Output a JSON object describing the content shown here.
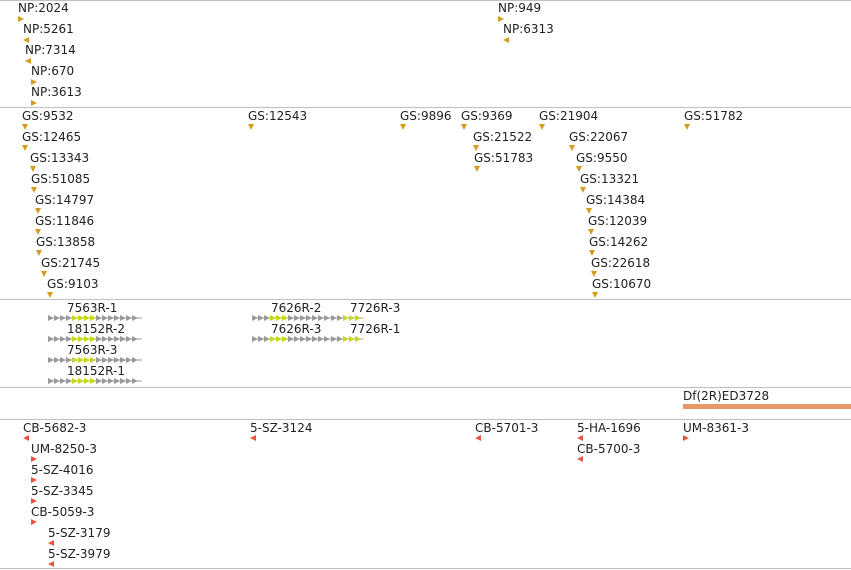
{
  "colors": {
    "divider": "#c0c0c0",
    "gene_span": "#d49b1e",
    "insertion": "#e8553c",
    "transcript_intron": "#9a9a9a",
    "transcript_exon": "#c8d61c",
    "deletion_bar": "#e8976a"
  },
  "tracks": {
    "np": {
      "features": [
        {
          "label": "NP:2024",
          "marker": "right"
        },
        {
          "label": "NP:5261",
          "marker": "left"
        },
        {
          "label": "NP:7314",
          "marker": "left"
        },
        {
          "label": "NP:670",
          "marker": "right"
        },
        {
          "label": "NP:3613",
          "marker": "right"
        },
        {
          "label": "NP:949",
          "marker": "right"
        },
        {
          "label": "NP:6313",
          "marker": "left"
        }
      ]
    },
    "gs": {
      "features": [
        {
          "label": "GS:9532",
          "marker": "down"
        },
        {
          "label": "GS:12465",
          "marker": "down"
        },
        {
          "label": "GS:13343",
          "marker": "down"
        },
        {
          "label": "GS:51085",
          "marker": "down"
        },
        {
          "label": "GS:14797",
          "marker": "down"
        },
        {
          "label": "GS:11846",
          "marker": "down"
        },
        {
          "label": "GS:13858",
          "marker": "down"
        },
        {
          "label": "GS:21745",
          "marker": "down"
        },
        {
          "label": "GS:9103",
          "marker": "down"
        },
        {
          "label": "GS:12543",
          "marker": "down"
        },
        {
          "label": "GS:9896",
          "marker": "down"
        },
        {
          "label": "GS:9369",
          "marker": "down"
        },
        {
          "label": "GS:21522",
          "marker": "down"
        },
        {
          "label": "GS:51783",
          "marker": "down"
        },
        {
          "label": "GS:21904",
          "marker": "down"
        },
        {
          "label": "GS:22067",
          "marker": "down"
        },
        {
          "label": "GS:9550",
          "marker": "down"
        },
        {
          "label": "GS:13321",
          "marker": "down"
        },
        {
          "label": "GS:14384",
          "marker": "down"
        },
        {
          "label": "GS:12039",
          "marker": "down"
        },
        {
          "label": "GS:14262",
          "marker": "down"
        },
        {
          "label": "GS:22618",
          "marker": "down"
        },
        {
          "label": "GS:10670",
          "marker": "down"
        },
        {
          "label": "GS:51782",
          "marker": "down"
        }
      ]
    },
    "transcripts": {
      "features": [
        {
          "label": "7563R-1"
        },
        {
          "label": "18152R-2"
        },
        {
          "label": "7563R-3"
        },
        {
          "label": "18152R-1"
        },
        {
          "label": "7626R-2"
        },
        {
          "label": "7626R-3"
        },
        {
          "label": "7726R-3"
        },
        {
          "label": "7726R-1"
        }
      ]
    },
    "deletions": {
      "features": [
        {
          "label": "Df(2R)ED3728"
        }
      ]
    },
    "insertions": {
      "features": [
        {
          "label": "CB-5682-3",
          "marker": "left"
        },
        {
          "label": "UM-8250-3",
          "marker": "right"
        },
        {
          "label": "5-SZ-4016",
          "marker": "right"
        },
        {
          "label": "5-SZ-3345",
          "marker": "right"
        },
        {
          "label": "CB-5059-3",
          "marker": "right"
        },
        {
          "label": "5-SZ-3179",
          "marker": "left"
        },
        {
          "label": "5-SZ-3979",
          "marker": "left"
        },
        {
          "label": "5-SZ-3124",
          "marker": "left"
        },
        {
          "label": "CB-5701-3",
          "marker": "left"
        },
        {
          "label": "5-HA-1696",
          "marker": "left"
        },
        {
          "label": "CB-5700-3",
          "marker": "left"
        },
        {
          "label": "UM-8361-3",
          "marker": "right"
        }
      ]
    }
  }
}
